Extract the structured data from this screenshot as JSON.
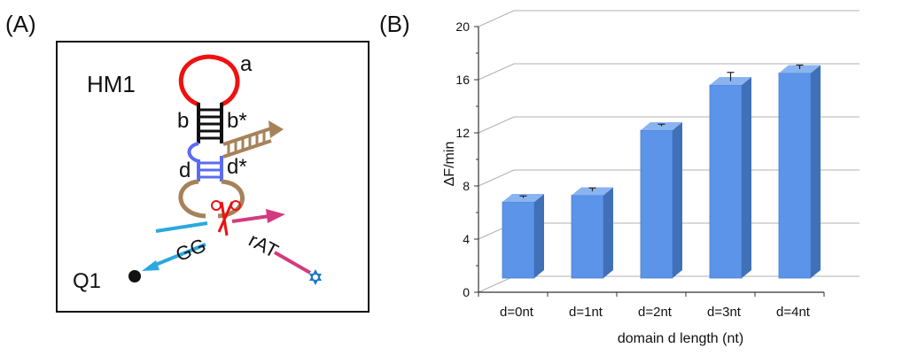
{
  "panel_a": {
    "label": "(A)",
    "hairpin_name": "HM1",
    "domain_a": "a",
    "domain_b": "b",
    "domain_b_star": "b*",
    "domain_d": "d",
    "domain_d_star": "d*",
    "cleavage_site": "rAT",
    "quencher_strand": "GG",
    "quencher_name": "Q1",
    "scissors_icon": "scissors-icon",
    "fluorophore_icon": "star-icon",
    "colors": {
      "loop": "#ee1111",
      "stem": "#111111",
      "d_stem": "#5a6cf0",
      "enzyme": "#a6825a",
      "substrate_left": "#2aa8df",
      "substrate_right": "#d23c7e",
      "fluorophore": "#1f78c8"
    }
  },
  "panel_b": {
    "label": "(B)"
  },
  "chart_data": {
    "type": "bar",
    "categories": [
      "d=0nt",
      "d=1nt",
      "d=2nt",
      "d=3nt",
      "d=4nt"
    ],
    "values": [
      6.8,
      7.3,
      12.2,
      15.6,
      16.5
    ],
    "errors": [
      0.15,
      0.25,
      0.15,
      0.65,
      0.3
    ],
    "title": "",
    "xlabel": "domain d length (nt)",
    "ylabel": "ΔF/min",
    "ylim": [
      0,
      20
    ],
    "yticks": [
      "0",
      "4",
      "8",
      "12",
      "16",
      "20"
    ],
    "grid": true,
    "bar_color": "#5b94e8",
    "bar_side_color": "#3f70b8",
    "bar_top_color": "#8ab4f0"
  }
}
